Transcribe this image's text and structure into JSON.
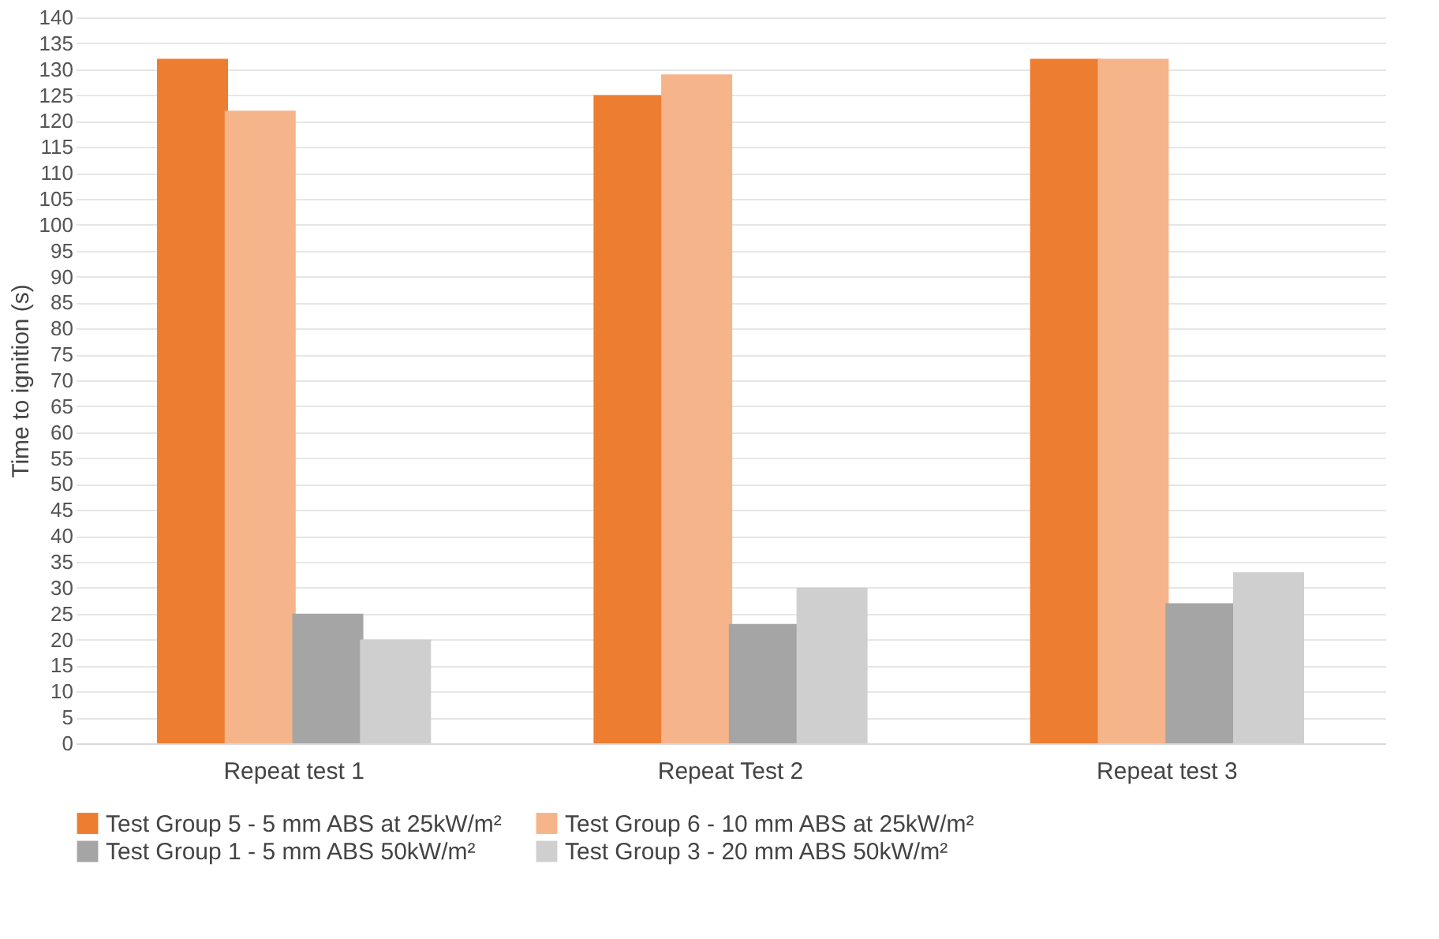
{
  "chart_data": {
    "type": "bar",
    "ylabel": "Time to ignition (s)",
    "categories": [
      "Repeat test 1",
      "Repeat Test 2",
      "Repeat test 3"
    ],
    "series": [
      {
        "name": "Test Group 5 - 5 mm ABS at 25kW/m²",
        "color": "#ed7d31",
        "values": [
          132,
          125,
          132
        ]
      },
      {
        "name": "Test Group 6 - 10 mm ABS at 25kW/m²",
        "color": "#f5b48a",
        "values": [
          122,
          129,
          132
        ]
      },
      {
        "name": "Test Group 1 - 5 mm ABS 50kW/m²",
        "color": "#a5a5a5",
        "values": [
          25,
          23,
          27
        ]
      },
      {
        "name": "Test Group 3 - 20 mm ABS 50kW/m²",
        "color": "#cfcfcf",
        "values": [
          20,
          30,
          33
        ]
      }
    ],
    "ylim": [
      0,
      140
    ],
    "yticks": [
      0,
      5,
      10,
      15,
      20,
      25,
      30,
      35,
      40,
      45,
      50,
      55,
      60,
      65,
      70,
      75,
      80,
      85,
      90,
      95,
      100,
      105,
      110,
      115,
      120,
      125,
      130,
      135,
      140
    ],
    "grid": "y",
    "legend": "bottom"
  }
}
